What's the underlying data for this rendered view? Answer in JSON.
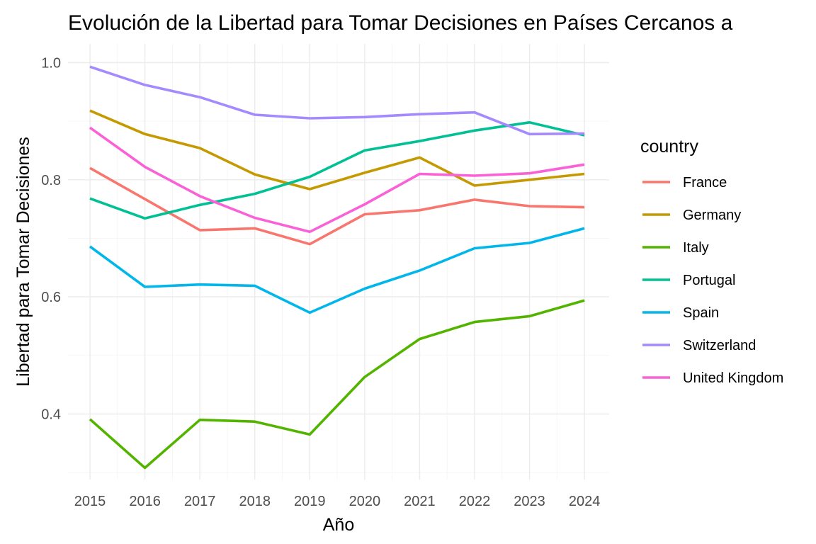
{
  "chart_data": {
    "type": "line",
    "title": "Evolución de la Libertad para Tomar Decisiones en Países Cercanos a",
    "xlabel": "Año",
    "ylabel": "Libertad para Tomar Decisiones",
    "x": [
      2015,
      2016,
      2017,
      2018,
      2019,
      2020,
      2021,
      2022,
      2023,
      2024
    ],
    "xlim": [
      2014.6,
      2024.45
    ],
    "ylim": [
      0.288,
      1.032
    ],
    "yticks": [
      0.4,
      0.6,
      0.8,
      1.0
    ],
    "ytick_labels": [
      "0.4",
      "0.6",
      "0.8",
      "1.0"
    ],
    "grid": true,
    "legend": {
      "title": "country",
      "position": "right"
    },
    "series": [
      {
        "name": "France",
        "color": "#F8766D",
        "values": [
          0.82,
          0.767,
          0.714,
          0.717,
          0.69,
          0.741,
          0.748,
          0.766,
          0.755,
          0.753
        ]
      },
      {
        "name": "Germany",
        "color": "#C49A00",
        "values": [
          0.918,
          0.878,
          0.854,
          0.809,
          0.784,
          0.812,
          0.838,
          0.79,
          0.8,
          0.81
        ]
      },
      {
        "name": "Italy",
        "color": "#53B400",
        "values": [
          0.391,
          0.308,
          0.39,
          0.387,
          0.365,
          0.463,
          0.528,
          0.557,
          0.567,
          0.594
        ]
      },
      {
        "name": "Portugal",
        "color": "#00C094",
        "values": [
          0.768,
          0.734,
          0.757,
          0.776,
          0.805,
          0.85,
          0.866,
          0.884,
          0.898,
          0.876
        ]
      },
      {
        "name": "Spain",
        "color": "#00B6EB",
        "values": [
          0.686,
          0.617,
          0.621,
          0.619,
          0.573,
          0.614,
          0.645,
          0.683,
          0.692,
          0.717
        ]
      },
      {
        "name": "Switzerland",
        "color": "#A58AFF",
        "values": [
          0.993,
          0.962,
          0.941,
          0.911,
          0.905,
          0.907,
          0.912,
          0.915,
          0.878,
          0.879
        ]
      },
      {
        "name": "United Kingdom",
        "color": "#FB61D7",
        "values": [
          0.889,
          0.822,
          0.772,
          0.735,
          0.711,
          0.758,
          0.81,
          0.807,
          0.811,
          0.826
        ]
      }
    ]
  }
}
